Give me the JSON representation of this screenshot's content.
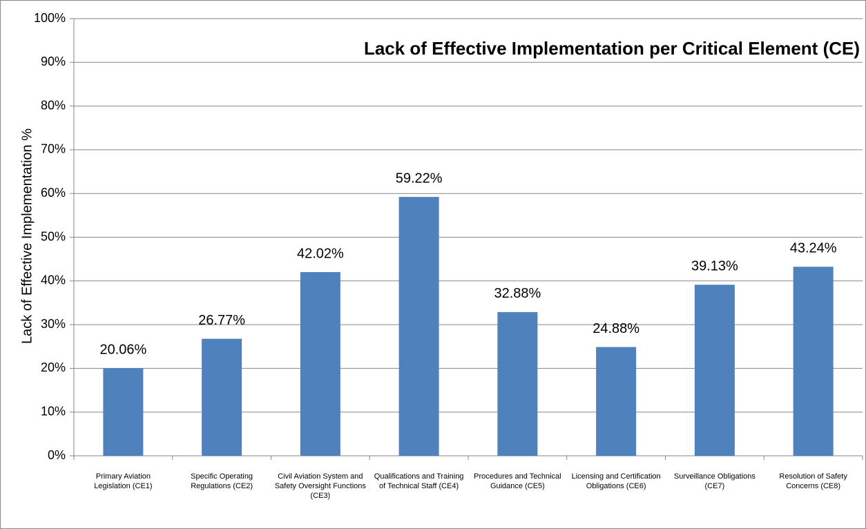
{
  "chart_data": {
    "type": "bar",
    "title": "Lack of Effective Implementation per Critical Element (CE)",
    "y_label": "Lack of Effective Implementation %",
    "categories": [
      "Primary Aviation Legislation (CE1)",
      "Specific Operating Regulations (CE2)",
      "Civil Aviation System and Safety Oversight Functions (CE3)",
      "Qualifications and Training of Technical Staff (CE4)",
      "Procedures and Technical Guidance (CE5)",
      "Licensing and Certification Obligations (CE6)",
      "Surveillance Obligations (CE7)",
      "Resolution of Safety Concerns (CE8)"
    ],
    "values": [
      20.06,
      26.77,
      42.02,
      59.22,
      32.88,
      24.88,
      39.13,
      43.24
    ],
    "value_labels": [
      "20.06%",
      "26.77%",
      "42.02%",
      "59.22%",
      "32.88%",
      "24.88%",
      "39.13%",
      "43.24%"
    ],
    "color": "#4f81bd",
    "ylim": [
      0,
      100
    ],
    "yticks": [
      {
        "value": 0,
        "label": "0%"
      },
      {
        "value": 10,
        "label": "10%"
      },
      {
        "value": 20,
        "label": "20%"
      },
      {
        "value": 30,
        "label": "30%"
      },
      {
        "value": 40,
        "label": "40%"
      },
      {
        "value": 50,
        "label": "50%"
      },
      {
        "value": 60,
        "label": "60%"
      },
      {
        "value": 70,
        "label": "70%"
      },
      {
        "value": 80,
        "label": "80%"
      },
      {
        "value": 90,
        "label": "90%"
      },
      {
        "value": 100,
        "label": "100%"
      }
    ],
    "grid": true
  }
}
